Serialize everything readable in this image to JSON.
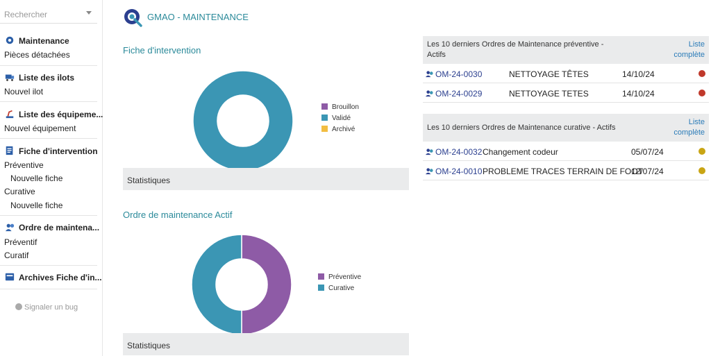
{
  "sidebar": {
    "search_placeholder": "Rechercher",
    "sections": [
      {
        "title": "Maintenance",
        "icon": "gear-icon",
        "items": [
          "Pièces détachées"
        ]
      },
      {
        "title": "Liste des ilots",
        "icon": "truck-icon",
        "items": [
          "Nouvel ilot"
        ]
      },
      {
        "title": "Liste des équipeme...",
        "icon": "robot-arm-icon",
        "items": [
          "Nouvel équipement"
        ]
      },
      {
        "title": "Fiche d'intervention",
        "icon": "document-icon",
        "items": [
          "Préventive",
          "Nouvelle fiche",
          "Curative",
          "Nouvelle fiche"
        ]
      },
      {
        "title": "Ordre de maintena...",
        "icon": "user-wrench-icon",
        "items": [
          "Préventif",
          "Curatif"
        ]
      },
      {
        "title": "Archives Fiche d'in...",
        "icon": "archive-icon",
        "items": []
      }
    ],
    "bug_label": "Signaler un bug"
  },
  "header": {
    "title": "GMAO - MAINTENANCE",
    "logo_icon": "gear-wrench-icon"
  },
  "panels": {
    "fiche": {
      "title": "Fiche d'intervention",
      "stats_label": "Statistiques",
      "legend": [
        {
          "label": "Brouillon",
          "color": "#8e5ba6"
        },
        {
          "label": "Validé",
          "color": "#3b96b4"
        },
        {
          "label": "Archivé",
          "color": "#f2bd42"
        }
      ]
    },
    "ordre": {
      "title": "Ordre de maintenance Actif",
      "stats_label": "Statistiques",
      "legend": [
        {
          "label": "Préventive",
          "color": "#8e5ba6"
        },
        {
          "label": "Curative",
          "color": "#3b96b4"
        }
      ]
    }
  },
  "chart_data": [
    {
      "type": "pie",
      "title": "Fiche d'intervention",
      "categories": [
        "Brouillon",
        "Validé",
        "Archivé"
      ],
      "values": [
        0,
        100,
        0
      ],
      "colors": [
        "#8e5ba6",
        "#3b96b4",
        "#f2bd42"
      ]
    },
    {
      "type": "pie",
      "title": "Ordre de maintenance Actif",
      "categories": [
        "Préventive",
        "Curative"
      ],
      "values": [
        50,
        50
      ],
      "colors": [
        "#8e5ba6",
        "#3b96b4"
      ]
    }
  ],
  "tables": {
    "preventive": {
      "title": "Les 10 derniers Ordres de Maintenance préventive - Actifs",
      "link": "Liste complète",
      "rows": [
        {
          "ref": "OM-24-0030",
          "label": "NETTOYAGE TÊTES",
          "date": "14/10/24",
          "status_color": "#c0392b"
        },
        {
          "ref": "OM-24-0029",
          "label": "NETTOYAGE TETES",
          "date": "14/10/24",
          "status_color": "#c0392b"
        }
      ]
    },
    "curative": {
      "title": "Les 10 derniers Ordres de Maintenance curative - Actifs",
      "link": "Liste complète",
      "rows": [
        {
          "ref": "OM-24-0032",
          "label": "Changement codeur",
          "date": "05/07/24",
          "status_color": "#c9a514"
        },
        {
          "ref": "OM-24-0010",
          "label": "PROBLEME TRACES TERRAIN DE FOOT",
          "date": "12/07/24",
          "status_color": "#c9a514"
        }
      ]
    }
  }
}
